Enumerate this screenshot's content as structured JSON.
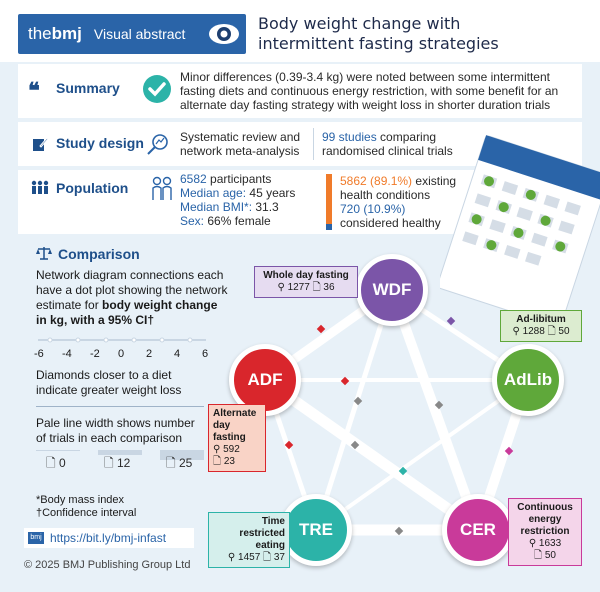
{
  "header": {
    "logo_prefix": "the",
    "logo_brand": "bmj",
    "label": "Visual abstract",
    "title_line1": "Body weight change with",
    "title_line2": "intermittent fasting strategies"
  },
  "summary": {
    "label": "Summary",
    "text_line1": "Minor differences (0.39-3.4 kg) were noted between some intermittent",
    "text_line2": "fasting diets and continuous energy restriction, with some benefit for an",
    "text_line3": "alternate day fasting strategy with weight loss in shorter duration trials"
  },
  "design": {
    "label": "Study design",
    "method_line1": "Systematic review and",
    "method_line2": "network meta-analysis",
    "studies_count": "99 studies",
    "studies_rest": "comparing",
    "studies_line2": "randomised clinical trials"
  },
  "population": {
    "label": "Population",
    "participants_num": "6582",
    "participants_word": "participants",
    "age_label": "Median age:",
    "age_value": "45 years",
    "bmi_label": "Median BMI*:",
    "bmi_value": "31.3",
    "sex_label": "Sex:",
    "sex_value": "66% female",
    "existing_num": "5862 (89.1%)",
    "existing_word": "existing",
    "existing_line2": "health conditions",
    "healthy_num": "720 (10.9%)",
    "healthy_line2": "considered healthy",
    "existing_fraction": 0.891,
    "healthy_fraction": 0.109
  },
  "comparison": {
    "label": "Comparison",
    "desc_line1": "Network diagram connections each",
    "desc_line2": "have a dot plot showing the network",
    "desc_line3a": "estimate for",
    "desc_line3b": "body weight change",
    "desc_line4": "in kg, with a 95% CI†",
    "axis_ticks": [
      "-6",
      "-4",
      "-2",
      "0",
      "2",
      "4",
      "6"
    ],
    "diamonds_line1": "Diamonds closer to a diet",
    "diamonds_line2": "indicate greater weight loss",
    "width_line1": "Pale line width shows number",
    "width_line2": "of trials in each comparison",
    "width_legend": [
      "0",
      "12",
      "25"
    ],
    "footnote1": "*Body mass index",
    "footnote2": "†Confidence interval"
  },
  "link": "https://bit.ly/bmj-infast",
  "copyright": "© 2025 BMJ Publishing Group Ltd",
  "nodes": {
    "wdf": {
      "abbr": "WDF",
      "name": "Whole day fasting",
      "participants": "1277",
      "trials": "36"
    },
    "adlib": {
      "abbr": "AdLib",
      "name": "Ad-libitum",
      "participants": "1288",
      "trials": "50"
    },
    "adf": {
      "abbr": "ADF",
      "name_l1": "Alternate",
      "name_l2": "day",
      "name_l3": "fasting",
      "participants": "592",
      "trials": "23"
    },
    "tre": {
      "abbr": "TRE",
      "name_l1": "Time",
      "name_l2": "restricted",
      "name_l3": "eating",
      "participants": "1457",
      "trials": "37"
    },
    "cer": {
      "abbr": "CER",
      "name_l1": "Continuous",
      "name_l2": "energy",
      "name_l3": "restriction",
      "participants": "1633",
      "trials": "50"
    }
  },
  "colors": {
    "brand_blue": "#2a64a8",
    "wdf": "#7b55a8",
    "adlib": "#5fa83a",
    "adf": "#d9262c",
    "tre": "#2cb3a8",
    "cer": "#c93a9a",
    "orange": "#f07b2a"
  }
}
